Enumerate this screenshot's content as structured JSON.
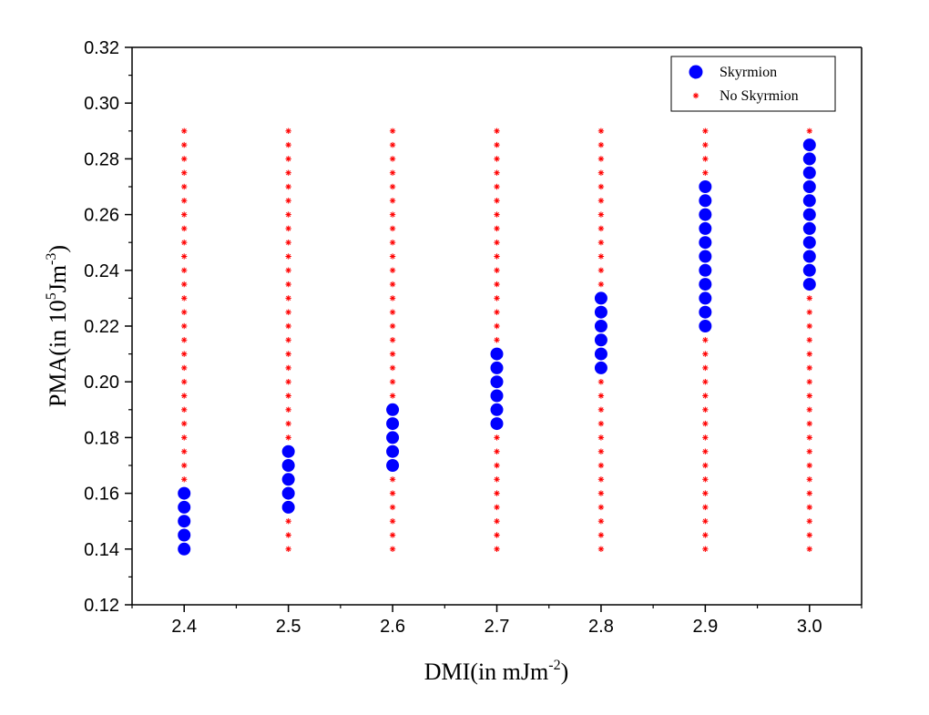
{
  "chart_data": {
    "type": "scatter",
    "title": "",
    "xlabel": "DMI(in mJm",
    "xlabel_sup": "-2",
    "xlabel_end": ")",
    "ylabel": "PMA(in 10",
    "ylabel_sup1": "5",
    "ylabel_mid": "Jm",
    "ylabel_sup2": "-3",
    "ylabel_end": ")",
    "xlim": [
      2.35,
      3.05
    ],
    "ylim": [
      0.12,
      0.32
    ],
    "xticks": [
      "2.4",
      "2.5",
      "2.6",
      "2.7",
      "2.8",
      "2.9",
      "3.0"
    ],
    "yticks": [
      "0.12",
      "0.14",
      "0.16",
      "0.18",
      "0.20",
      "0.22",
      "0.24",
      "0.26",
      "0.28",
      "0.30",
      "0.32"
    ],
    "legend_position": "top-right",
    "x_values": [
      2.4,
      2.5,
      2.6,
      2.7,
      2.8,
      2.9,
      3.0
    ],
    "pma_min": 0.14,
    "pma_max": 0.29,
    "pma_step": 0.005,
    "series": [
      {
        "name": "Skyrmion",
        "marker": "circle",
        "color": "#0000ff",
        "ranges": [
          {
            "x": 2.4,
            "y_min": 0.14,
            "y_max": 0.16
          },
          {
            "x": 2.5,
            "y_min": 0.155,
            "y_max": 0.175
          },
          {
            "x": 2.6,
            "y_min": 0.17,
            "y_max": 0.19
          },
          {
            "x": 2.7,
            "y_min": 0.185,
            "y_max": 0.21
          },
          {
            "x": 2.8,
            "y_min": 0.205,
            "y_max": 0.23
          },
          {
            "x": 2.9,
            "y_min": 0.22,
            "y_max": 0.27
          },
          {
            "x": 3.0,
            "y_min": 0.235,
            "y_max": 0.285
          }
        ]
      },
      {
        "name": "No Skyrmion",
        "marker": "asterisk",
        "color": "#ff0000",
        "description_rule": "all grid points from pma_min to pma_max at each x not in Skyrmion range"
      }
    ]
  }
}
